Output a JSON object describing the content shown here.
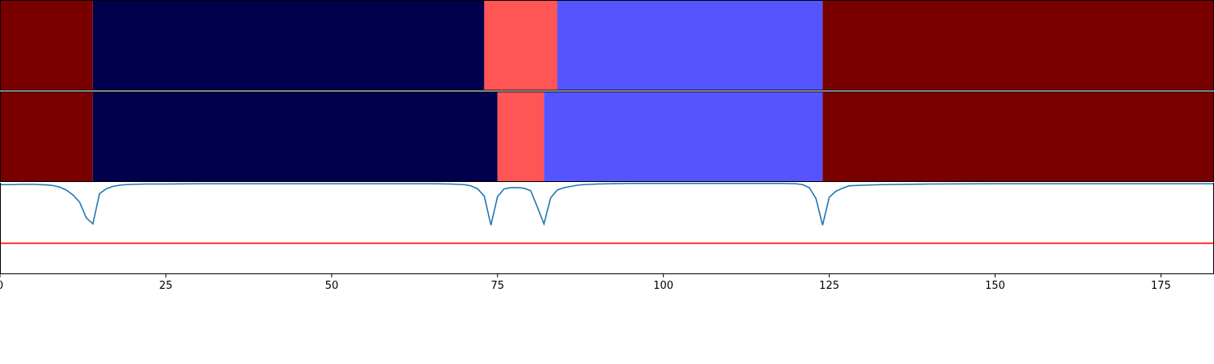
{
  "chart_data": [
    {
      "type": "heatmap",
      "title": "",
      "segments": [
        {
          "start": 0,
          "end": 14,
          "color": "#7a0000"
        },
        {
          "start": 14,
          "end": 73,
          "color": "#00004c"
        },
        {
          "start": 73,
          "end": 84,
          "color": "#ff5555"
        },
        {
          "start": 84,
          "end": 124,
          "color": "#5555ff"
        },
        {
          "start": 124,
          "end": 184,
          "color": "#7a0000"
        }
      ]
    },
    {
      "type": "heatmap",
      "title": "",
      "segments": [
        {
          "start": 0,
          "end": 14,
          "color": "#7a0000"
        },
        {
          "start": 14,
          "end": 75,
          "color": "#00004c"
        },
        {
          "start": 75,
          "end": 82,
          "color": "#ff5555"
        },
        {
          "start": 82,
          "end": 124,
          "color": "#5555ff"
        },
        {
          "start": 124,
          "end": 184,
          "color": "#7a0000"
        }
      ]
    },
    {
      "type": "line",
      "title": "",
      "xlabel": "",
      "ylabel": "",
      "xlim": [
        0,
        183
      ],
      "ylim": [
        -0.5,
        1.0
      ],
      "xticks": [
        0,
        25,
        50,
        75,
        100,
        125,
        150,
        175
      ],
      "series": [
        {
          "color": "#1f77b4",
          "x": [
            0,
            1,
            2,
            3,
            4,
            5,
            6,
            7,
            8,
            9,
            10,
            11,
            12,
            13,
            14,
            15,
            16,
            17,
            18,
            19,
            20,
            22,
            25,
            30,
            40,
            50,
            60,
            65,
            68,
            70,
            71,
            72,
            73,
            74,
            75,
            76,
            77,
            78,
            79,
            80,
            81,
            82,
            83,
            84,
            85,
            86,
            87,
            88,
            90,
            92,
            95,
            100,
            105,
            110,
            115,
            118,
            120,
            121,
            122,
            123,
            124,
            125,
            126,
            127,
            128,
            130,
            133,
            140,
            150,
            160,
            170,
            180,
            183
          ],
          "y": [
            0.97,
            0.97,
            0.97,
            0.975,
            0.975,
            0.975,
            0.97,
            0.965,
            0.955,
            0.93,
            0.88,
            0.8,
            0.68,
            0.42,
            0.32,
            0.82,
            0.9,
            0.94,
            0.96,
            0.97,
            0.975,
            0.98,
            0.98,
            0.985,
            0.985,
            0.985,
            0.985,
            0.985,
            0.98,
            0.97,
            0.95,
            0.9,
            0.78,
            0.3,
            0.77,
            0.9,
            0.92,
            0.92,
            0.91,
            0.87,
            0.6,
            0.32,
            0.75,
            0.88,
            0.92,
            0.94,
            0.96,
            0.97,
            0.98,
            0.985,
            0.99,
            0.99,
            0.99,
            0.99,
            0.99,
            0.99,
            0.985,
            0.97,
            0.92,
            0.74,
            0.3,
            0.76,
            0.86,
            0.91,
            0.95,
            0.96,
            0.97,
            0.98,
            0.985,
            0.985,
            0.985,
            0.985,
            0.985
          ]
        },
        {
          "color": "#ff0000",
          "x": [
            0,
            183
          ],
          "y": [
            0,
            0
          ]
        }
      ]
    }
  ]
}
